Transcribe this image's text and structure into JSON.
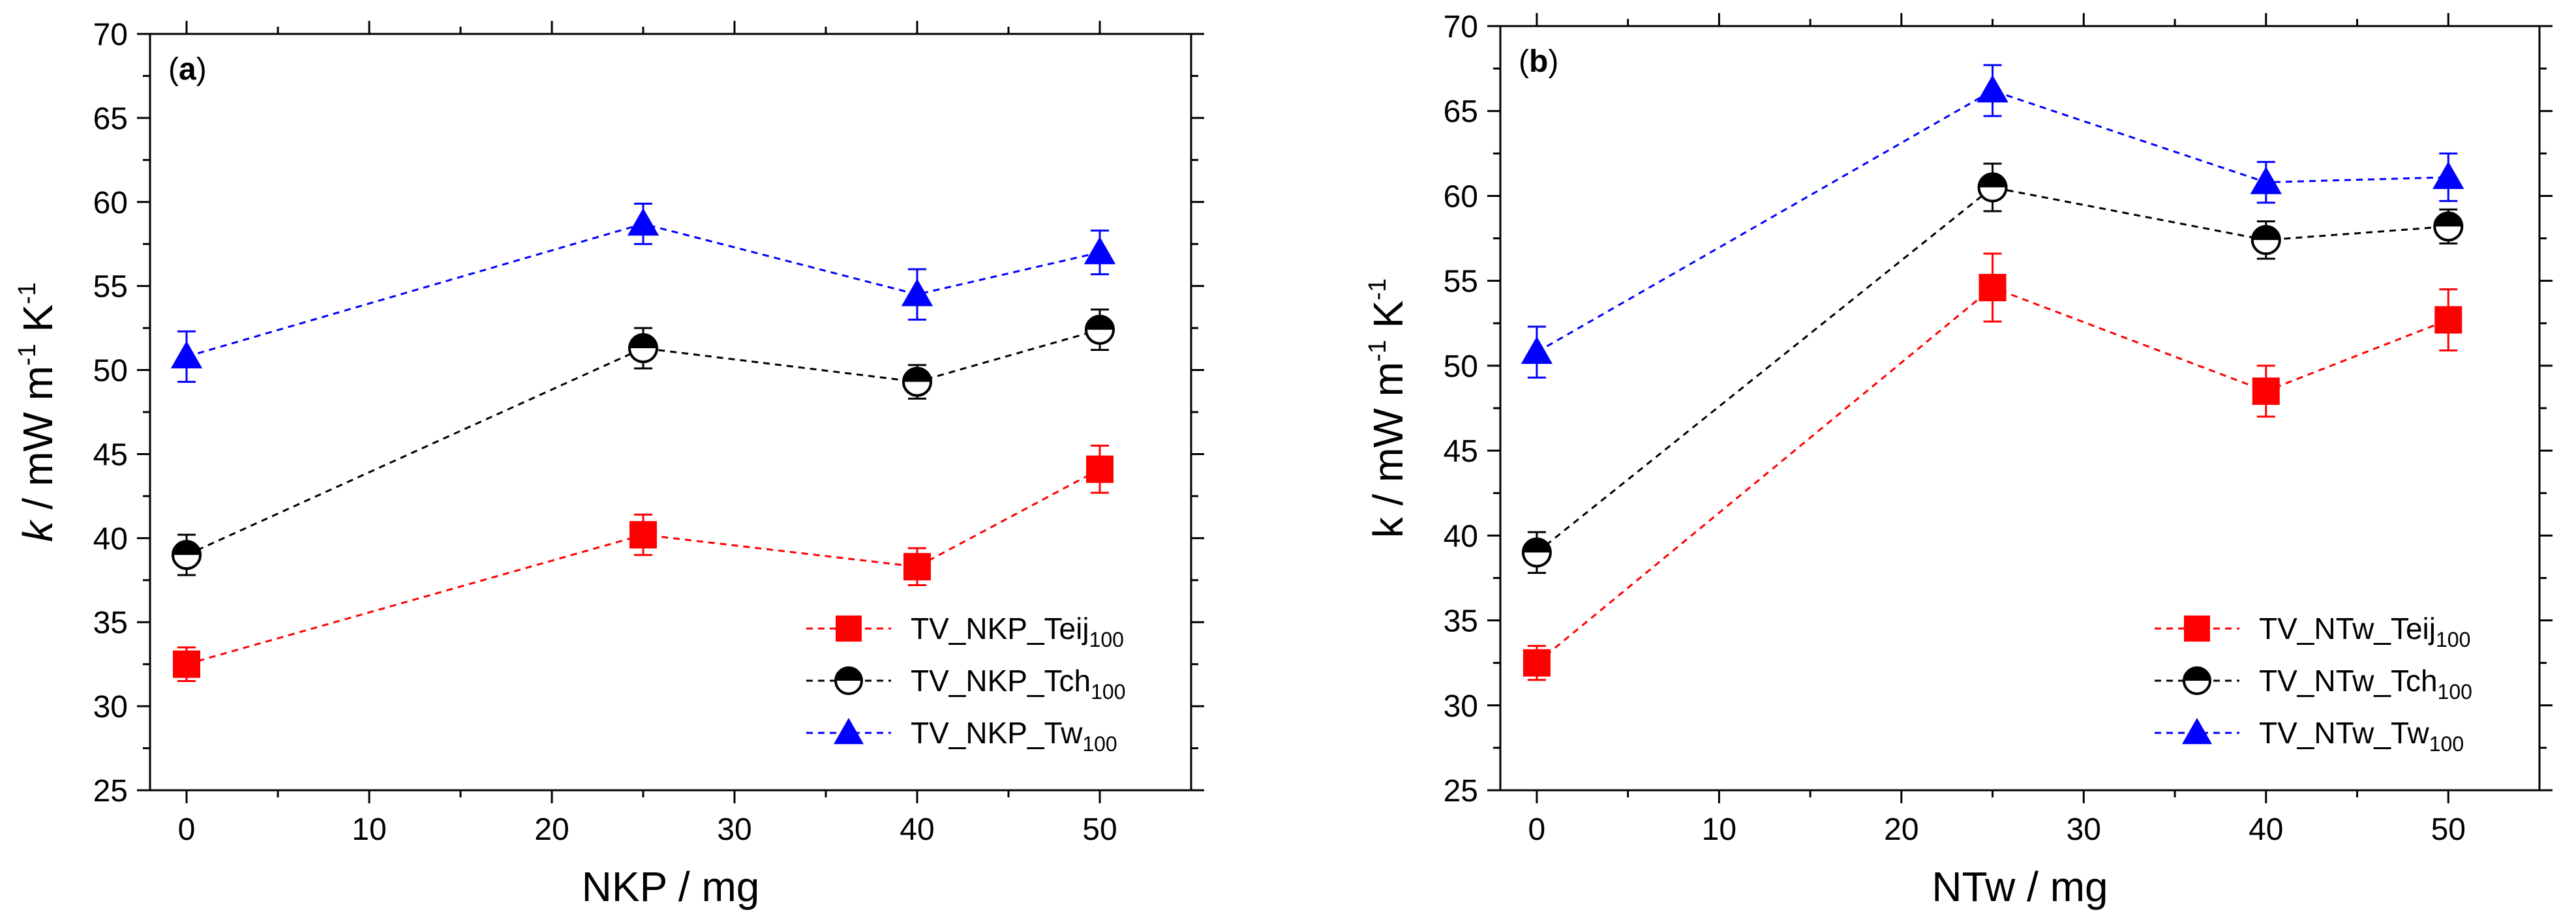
{
  "chart_data": [
    {
      "type": "line",
      "panel_label": {
        "open": "(",
        "letter": "a",
        "close": ")"
      },
      "xlabel": "NKP / mg",
      "ylabel": {
        "italic": "k",
        "unit": " / mW m",
        "exp1": "-1",
        "mid": " K",
        "exp2": "-1"
      },
      "xlim": [
        -2,
        55
      ],
      "ylim": [
        25,
        70
      ],
      "xticks": [
        0,
        10,
        20,
        30,
        40,
        50
      ],
      "yticks": [
        25,
        30,
        35,
        40,
        45,
        50,
        55,
        60,
        65,
        70
      ],
      "x": [
        0,
        25,
        40,
        50
      ],
      "series": [
        {
          "name_main": "TV_NKP_Teij",
          "name_sub": "100",
          "color": "#ff0000",
          "marker": "square",
          "values": [
            32.5,
            40.2,
            38.3,
            44.1
          ],
          "errors": [
            1.0,
            1.2,
            1.1,
            1.4
          ]
        },
        {
          "name_main": "TV_NKP_Tch",
          "name_sub": "100",
          "color": "#000000",
          "marker": "half-circle",
          "values": [
            39.0,
            51.3,
            49.3,
            52.4
          ],
          "errors": [
            1.2,
            1.2,
            1.0,
            1.2
          ]
        },
        {
          "name_main": "TV_NKP_Tw",
          "name_sub": "100",
          "color": "#0000ff",
          "marker": "triangle",
          "values": [
            50.8,
            58.7,
            54.5,
            57.0
          ],
          "errors": [
            1.5,
            1.2,
            1.5,
            1.3
          ]
        }
      ]
    },
    {
      "type": "line",
      "panel_label": {
        "open": "(",
        "letter": "b",
        "close": ")"
      },
      "xlabel": "NTw / mg",
      "ylabel": {
        "italic": "",
        "unit": "k / mW m",
        "exp1": "-1",
        "mid": " K",
        "exp2": "-1"
      },
      "xlim": [
        -2,
        55
      ],
      "ylim": [
        25,
        70
      ],
      "xticks": [
        0,
        10,
        20,
        30,
        40,
        50
      ],
      "yticks": [
        25,
        30,
        35,
        40,
        45,
        50,
        55,
        60,
        65,
        70
      ],
      "x": [
        0,
        25,
        40,
        50
      ],
      "series": [
        {
          "name_main": "TV_NTw_Teij",
          "name_sub": "100",
          "color": "#ff0000",
          "marker": "square",
          "values": [
            32.5,
            54.6,
            48.5,
            52.7
          ],
          "errors": [
            1.0,
            2.0,
            1.5,
            1.8
          ]
        },
        {
          "name_main": "TV_NTw_Tch",
          "name_sub": "100",
          "color": "#000000",
          "marker": "half-circle",
          "values": [
            39.0,
            60.5,
            57.4,
            58.2
          ],
          "errors": [
            1.2,
            1.4,
            1.1,
            1.0
          ]
        },
        {
          "name_main": "TV_NTw_Tw",
          "name_sub": "100",
          "color": "#0000ff",
          "marker": "triangle",
          "values": [
            50.8,
            66.2,
            60.8,
            61.1
          ],
          "errors": [
            1.5,
            1.5,
            1.2,
            1.4
          ]
        }
      ]
    }
  ]
}
